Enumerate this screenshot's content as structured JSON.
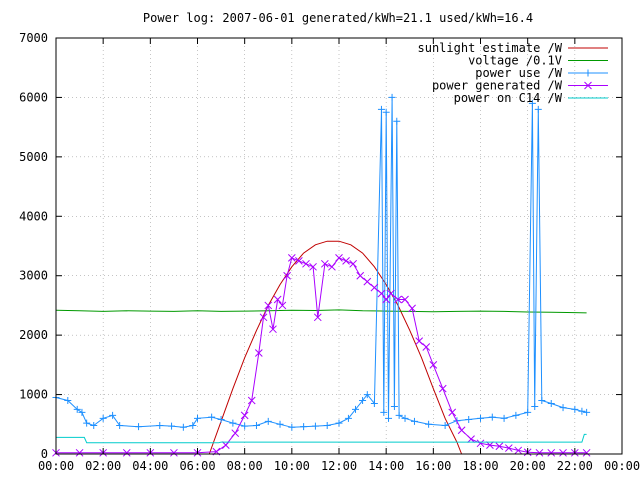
{
  "chart_data": {
    "type": "line",
    "title": "Power log: 2007-06-01 generated/kWh=21.1 used/kWh=16.4",
    "xlabel": "",
    "ylabel": "",
    "x_range_hours": [
      0,
      24
    ],
    "ylim": [
      0,
      7000
    ],
    "x_tick_labels": [
      "00:00",
      "02:00",
      "04:00",
      "06:00",
      "08:00",
      "10:00",
      "12:00",
      "14:00",
      "16:00",
      "18:00",
      "20:00",
      "22:00",
      "00:00"
    ],
    "y_tick_labels": [
      "0",
      "1000",
      "2000",
      "3000",
      "4000",
      "5000",
      "6000",
      "7000"
    ],
    "y_ticks": [
      0,
      1000,
      2000,
      3000,
      4000,
      5000,
      6000,
      7000
    ],
    "grid": true,
    "legend_position": "top-right",
    "series": [
      {
        "name": "sunlight estimate /W",
        "color": "#c00000",
        "marker": "none",
        "points": [
          [
            6.5,
            0
          ],
          [
            7.0,
            550
          ],
          [
            7.5,
            1100
          ],
          [
            8.0,
            1620
          ],
          [
            8.5,
            2080
          ],
          [
            9.0,
            2500
          ],
          [
            9.5,
            2850
          ],
          [
            10.0,
            3150
          ],
          [
            10.5,
            3380
          ],
          [
            11.0,
            3520
          ],
          [
            11.5,
            3580
          ],
          [
            12.0,
            3580
          ],
          [
            12.5,
            3520
          ],
          [
            13.0,
            3380
          ],
          [
            13.5,
            3150
          ],
          [
            14.0,
            2850
          ],
          [
            14.5,
            2500
          ],
          [
            15.0,
            2080
          ],
          [
            15.5,
            1620
          ],
          [
            16.0,
            1100
          ],
          [
            16.5,
            600
          ],
          [
            17.0,
            200
          ],
          [
            17.2,
            0
          ]
        ]
      },
      {
        "name": "voltage /0.1V",
        "color": "#009900",
        "marker": "none",
        "points": [
          [
            0.0,
            2420
          ],
          [
            1.0,
            2410
          ],
          [
            2.0,
            2400
          ],
          [
            3.0,
            2410
          ],
          [
            4.0,
            2405
          ],
          [
            5.0,
            2400
          ],
          [
            6.0,
            2410
          ],
          [
            7.0,
            2400
          ],
          [
            8.0,
            2405
          ],
          [
            9.0,
            2410
          ],
          [
            10.0,
            2420
          ],
          [
            11.0,
            2415
          ],
          [
            12.0,
            2425
          ],
          [
            13.0,
            2410
          ],
          [
            14.0,
            2405
          ],
          [
            15.0,
            2400
          ],
          [
            16.0,
            2395
          ],
          [
            17.0,
            2400
          ],
          [
            18.0,
            2405
          ],
          [
            19.0,
            2400
          ],
          [
            20.0,
            2390
          ],
          [
            21.0,
            2385
          ],
          [
            22.0,
            2380
          ],
          [
            22.5,
            2375
          ]
        ]
      },
      {
        "name": "power use /W",
        "color": "#1e90ff",
        "marker": "plus",
        "points": [
          [
            0.0,
            950
          ],
          [
            0.5,
            900
          ],
          [
            0.9,
            750
          ],
          [
            1.1,
            700
          ],
          [
            1.3,
            520
          ],
          [
            1.6,
            480
          ],
          [
            2.0,
            600
          ],
          [
            2.4,
            650
          ],
          [
            2.7,
            480
          ],
          [
            3.5,
            460
          ],
          [
            4.4,
            480
          ],
          [
            4.9,
            470
          ],
          [
            5.4,
            450
          ],
          [
            5.8,
            480
          ],
          [
            6.0,
            600
          ],
          [
            6.6,
            620
          ],
          [
            7.0,
            580
          ],
          [
            7.5,
            520
          ],
          [
            8.0,
            470
          ],
          [
            8.5,
            480
          ],
          [
            9.0,
            550
          ],
          [
            9.5,
            500
          ],
          [
            10.0,
            450
          ],
          [
            10.5,
            460
          ],
          [
            11.0,
            470
          ],
          [
            11.5,
            480
          ],
          [
            12.0,
            520
          ],
          [
            12.4,
            600
          ],
          [
            12.7,
            750
          ],
          [
            13.0,
            900
          ],
          [
            13.2,
            1000
          ],
          [
            13.5,
            850
          ],
          [
            13.8,
            5800
          ],
          [
            13.9,
            700
          ],
          [
            14.0,
            5750
          ],
          [
            14.1,
            600
          ],
          [
            14.25,
            6000
          ],
          [
            14.35,
            800
          ],
          [
            14.45,
            5600
          ],
          [
            14.55,
            650
          ],
          [
            14.8,
            600
          ],
          [
            15.2,
            550
          ],
          [
            15.8,
            500
          ],
          [
            16.5,
            480
          ],
          [
            17.0,
            560
          ],
          [
            17.5,
            580
          ],
          [
            18.0,
            600
          ],
          [
            18.5,
            620
          ],
          [
            19.0,
            600
          ],
          [
            19.5,
            650
          ],
          [
            20.0,
            700
          ],
          [
            20.2,
            5900
          ],
          [
            20.3,
            800
          ],
          [
            20.45,
            5800
          ],
          [
            20.6,
            900
          ],
          [
            21.0,
            850
          ],
          [
            21.5,
            780
          ],
          [
            22.0,
            750
          ],
          [
            22.3,
            720
          ],
          [
            22.5,
            700
          ]
        ]
      },
      {
        "name": "power generated /W",
        "color": "#aa00ff",
        "marker": "cross",
        "points": [
          [
            0.0,
            20
          ],
          [
            1.0,
            20
          ],
          [
            2.0,
            20
          ],
          [
            3.0,
            20
          ],
          [
            4.0,
            20
          ],
          [
            5.0,
            20
          ],
          [
            6.0,
            20
          ],
          [
            6.8,
            40
          ],
          [
            7.2,
            150
          ],
          [
            7.6,
            350
          ],
          [
            8.0,
            650
          ],
          [
            8.3,
            900
          ],
          [
            8.6,
            1700
          ],
          [
            8.8,
            2300
          ],
          [
            9.0,
            2500
          ],
          [
            9.2,
            2100
          ],
          [
            9.4,
            2600
          ],
          [
            9.6,
            2500
          ],
          [
            9.8,
            3000
          ],
          [
            10.0,
            3300
          ],
          [
            10.3,
            3250
          ],
          [
            10.6,
            3200
          ],
          [
            10.9,
            3150
          ],
          [
            11.1,
            2300
          ],
          [
            11.4,
            3200
          ],
          [
            11.7,
            3150
          ],
          [
            12.0,
            3300
          ],
          [
            12.3,
            3250
          ],
          [
            12.6,
            3200
          ],
          [
            12.9,
            3000
          ],
          [
            13.2,
            2900
          ],
          [
            13.5,
            2800
          ],
          [
            13.8,
            2700
          ],
          [
            14.0,
            2600
          ],
          [
            14.2,
            2700
          ],
          [
            14.5,
            2600
          ],
          [
            14.8,
            2600
          ],
          [
            15.1,
            2450
          ],
          [
            15.4,
            1900
          ],
          [
            15.7,
            1800
          ],
          [
            16.0,
            1500
          ],
          [
            16.4,
            1100
          ],
          [
            16.8,
            700
          ],
          [
            17.2,
            400
          ],
          [
            17.6,
            250
          ],
          [
            18.0,
            180
          ],
          [
            18.4,
            150
          ],
          [
            18.8,
            130
          ],
          [
            19.2,
            100
          ],
          [
            19.6,
            60
          ],
          [
            20.0,
            30
          ],
          [
            20.5,
            20
          ],
          [
            21.0,
            20
          ],
          [
            21.5,
            20
          ],
          [
            22.0,
            20
          ],
          [
            22.5,
            20
          ]
        ]
      },
      {
        "name": "power on C14 /W",
        "color": "#00cccc",
        "marker": "none",
        "points": [
          [
            0.0,
            280
          ],
          [
            1.2,
            280
          ],
          [
            1.3,
            190
          ],
          [
            6.9,
            190
          ],
          [
            7.0,
            200
          ],
          [
            22.3,
            200
          ],
          [
            22.4,
            330
          ],
          [
            22.5,
            330
          ]
        ]
      }
    ]
  }
}
